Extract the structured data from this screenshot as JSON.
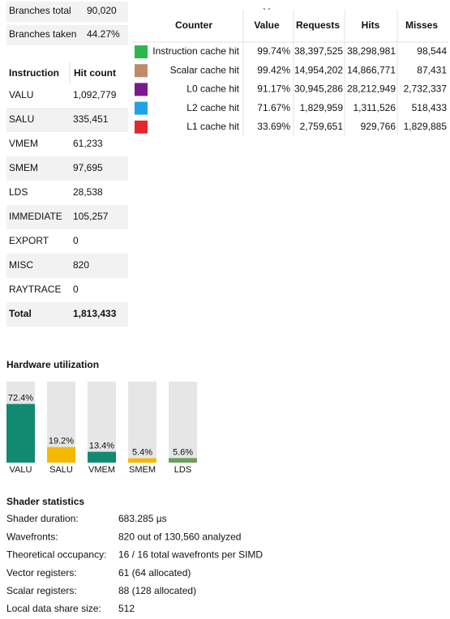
{
  "branches": {
    "rows": [
      [
        "Branches total",
        "90,020"
      ],
      [
        "Branches taken",
        "44.27%"
      ]
    ]
  },
  "instructions": {
    "header": [
      "Instruction",
      "Hit count"
    ],
    "rows": [
      [
        "VALU",
        "1,092,779"
      ],
      [
        "SALU",
        "335,451"
      ],
      [
        "VMEM",
        "61,233"
      ],
      [
        "SMEM",
        "97,695"
      ],
      [
        "LDS",
        "28,538"
      ],
      [
        "IMMEDIATE",
        "105,257"
      ],
      [
        "EXPORT",
        "0"
      ],
      [
        "MISC",
        "820"
      ],
      [
        "RAYTRACE",
        "0"
      ]
    ],
    "total": [
      "Total",
      "1,813,433"
    ]
  },
  "cache": {
    "header": [
      "Counter",
      "Value",
      "Requests",
      "Hits",
      "Misses"
    ],
    "rows": [
      {
        "color": "#2db84d",
        "cells": [
          "Instruction cache hit",
          "99.74%",
          "38,397,525",
          "38,298,981",
          "98,544"
        ]
      },
      {
        "color": "#c08a6a",
        "cells": [
          "Scalar cache hit",
          "99.42%",
          "14,954,202",
          "14,866,771",
          "87,431"
        ]
      },
      {
        "color": "#7b1a8c",
        "cells": [
          "L0 cache hit",
          "91.17%",
          "30,945,286",
          "28,212,949",
          "2,732,337"
        ]
      },
      {
        "color": "#1fa3e6",
        "cells": [
          "L2 cache hit",
          "71.67%",
          "1,829,959",
          "1,311,526",
          "518,433"
        ]
      },
      {
        "color": "#e5262c",
        "cells": [
          "L1 cache hit",
          "33.69%",
          "2,759,651",
          "929,766",
          "1,829,885"
        ]
      }
    ]
  },
  "hardware_utilization": {
    "title": "Hardware utilization",
    "ylim": [
      0,
      100
    ],
    "categories": [
      "VALU",
      "SALU",
      "VMEM",
      "SMEM",
      "LDS"
    ],
    "values": [
      72.4,
      19.2,
      13.4,
      5.4,
      5.6
    ],
    "value_labels": [
      "72.4%",
      "19.2%",
      "13.4%",
      "5.4%",
      "5.6%"
    ],
    "colors": [
      "#128a72",
      "#f5b800",
      "#128a72",
      "#f5b800",
      "#6e9e5e"
    ]
  },
  "shader_statistics": {
    "title": "Shader statistics",
    "rows": [
      [
        "Shader duration:",
        "683.285 µs"
      ],
      [
        "Wavefronts:",
        "820 out of 130,560 analyzed"
      ],
      [
        "Theoretical occupancy:",
        "16 / 16 total wavefronts per SIMD"
      ],
      [
        "Vector registers:",
        "61 (64 allocated)"
      ],
      [
        "Scalar registers:",
        "88 (128 allocated)"
      ],
      [
        "Local data share size:",
        "512"
      ]
    ]
  }
}
